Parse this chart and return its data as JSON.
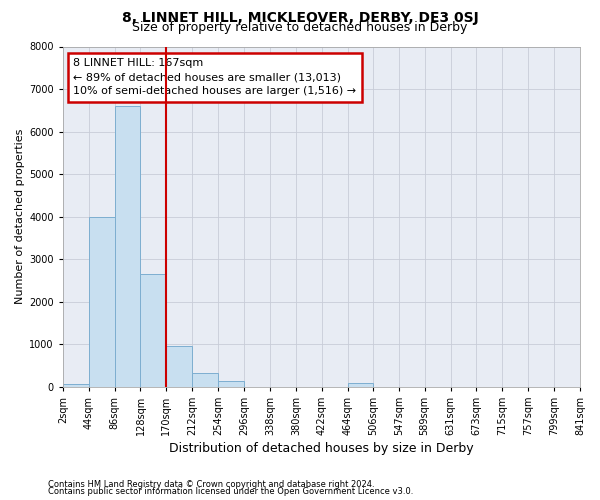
{
  "title": "8, LINNET HILL, MICKLEOVER, DERBY, DE3 0SJ",
  "subtitle": "Size of property relative to detached houses in Derby",
  "xlabel": "Distribution of detached houses by size in Derby",
  "ylabel": "Number of detached properties",
  "annotation_line1": "8 LINNET HILL: 167sqm",
  "annotation_line2": "← 89% of detached houses are smaller (13,013)",
  "annotation_line3": "10% of semi-detached houses are larger (1,516) →",
  "footnote1": "Contains HM Land Registry data © Crown copyright and database right 2024.",
  "footnote2": "Contains public sector information licensed under the Open Government Licence v3.0.",
  "bin_labels": [
    "2sqm",
    "44sqm",
    "86sqm",
    "128sqm",
    "170sqm",
    "212sqm",
    "254sqm",
    "296sqm",
    "338sqm",
    "380sqm",
    "422sqm",
    "464sqm",
    "506sqm",
    "547sqm",
    "589sqm",
    "631sqm",
    "673sqm",
    "715sqm",
    "757sqm",
    "799sqm",
    "841sqm"
  ],
  "bin_edges": [
    2,
    44,
    86,
    128,
    170,
    212,
    254,
    296,
    338,
    380,
    422,
    464,
    506,
    547,
    589,
    631,
    673,
    715,
    757,
    799,
    841
  ],
  "bar_heights": [
    50,
    4000,
    6600,
    2650,
    950,
    330,
    130,
    0,
    0,
    0,
    0,
    80,
    0,
    0,
    0,
    0,
    0,
    0,
    0,
    0
  ],
  "bar_color": "#c8dff0",
  "bar_edge_color": "#7daed0",
  "vline_x": 170,
  "vline_color": "#cc0000",
  "ylim": [
    0,
    8000
  ],
  "yticks": [
    0,
    1000,
    2000,
    3000,
    4000,
    5000,
    6000,
    7000,
    8000
  ],
  "grid_color": "#c8ccd8",
  "bg_color": "#e8ecf4",
  "title_fontsize": 10,
  "subtitle_fontsize": 9,
  "xlabel_fontsize": 9,
  "ylabel_fontsize": 8,
  "tick_fontsize": 7,
  "annotation_fontsize": 8,
  "footnote_fontsize": 6
}
